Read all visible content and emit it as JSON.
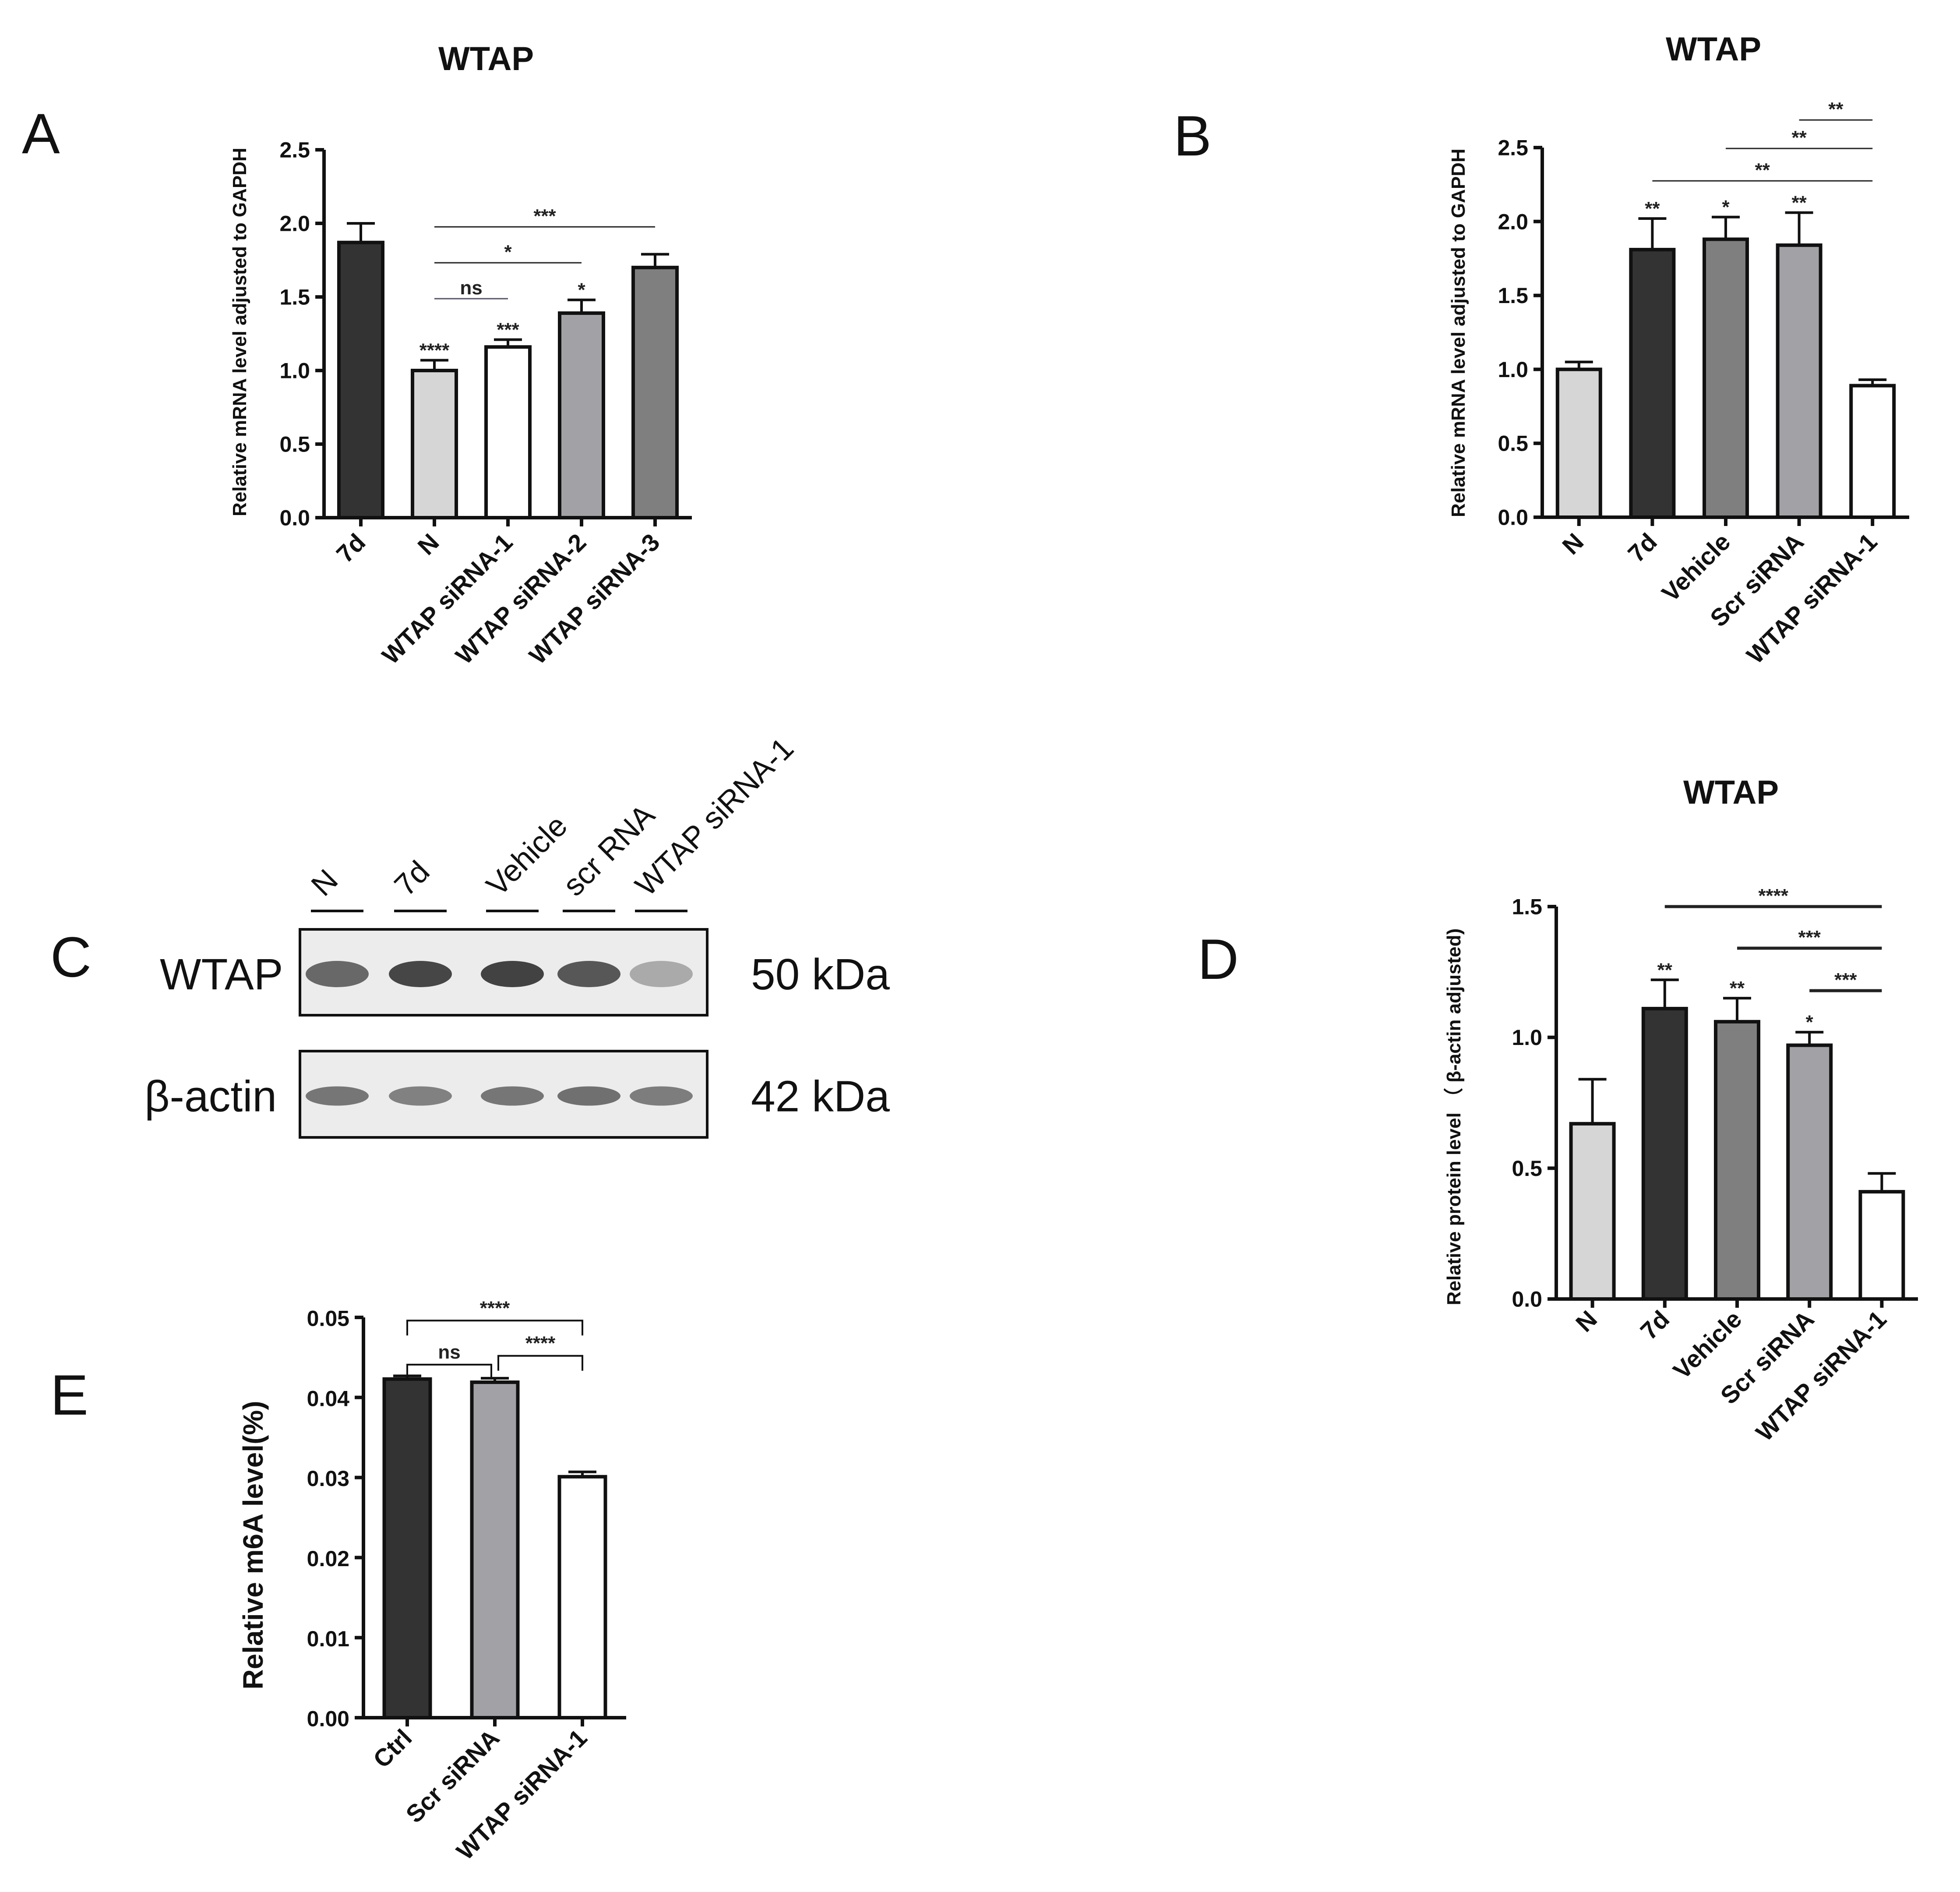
{
  "panels": {
    "a": "A",
    "b": "B",
    "c": "C",
    "d": "D",
    "e": "E"
  },
  "blot": {
    "lanes": [
      "N",
      "7d",
      "Vehicle",
      "scr RNA",
      "WTAP siRNA-1"
    ],
    "rows": [
      {
        "label": "WTAP",
        "size": "50 kDa",
        "intensities": [
          0.72,
          0.88,
          0.9,
          0.8,
          0.4
        ]
      },
      {
        "label": "β-actin",
        "size": "42 kDa",
        "intensities": [
          0.65,
          0.6,
          0.65,
          0.68,
          0.62
        ]
      }
    ]
  },
  "chart_data": [
    {
      "id": "A",
      "type": "bar",
      "title": "WTAP",
      "xlabel": "",
      "ylabel": "Relative mRNA level adjusted to GAPDH",
      "ylim": [
        0,
        2.5
      ],
      "yticks": [
        "0.0",
        "0.5",
        "1.0",
        "1.5",
        "2.0",
        "2.5"
      ],
      "categories": [
        "7d",
        "N",
        "WTAP siRNA-1",
        "WTAP siRNA-2",
        "WTAP siRNA-3"
      ],
      "values": [
        1.87,
        1.0,
        1.16,
        1.39,
        1.7
      ],
      "errors": [
        0.13,
        0.07,
        0.05,
        0.09,
        0.09
      ],
      "colors": [
        "#333333",
        "#d6d6d6",
        "#ffffff",
        "#a2a2a6",
        "#7f7f7f"
      ],
      "bar_labels": [
        "",
        "****",
        "***",
        "*",
        ""
      ],
      "comparisons": [
        {
          "from": 1,
          "to": 2,
          "label": "ns"
        },
        {
          "from": 1,
          "to": 3,
          "label": "*"
        },
        {
          "from": 1,
          "to": 4,
          "label": "***"
        }
      ],
      "grid": false,
      "legend": "none"
    },
    {
      "id": "B",
      "type": "bar",
      "title": "WTAP",
      "xlabel": "",
      "ylabel": "Relative mRNA level adjusted to GAPDH",
      "ylim": [
        0,
        2.5
      ],
      "yticks": [
        "0.0",
        "0.5",
        "1.0",
        "1.5",
        "2.0",
        "2.5"
      ],
      "categories": [
        "N",
        "7d",
        "Vehicle",
        "Scr siRNA",
        "WTAP siRNA-1"
      ],
      "values": [
        1.0,
        1.81,
        1.88,
        1.84,
        0.89
      ],
      "errors": [
        0.05,
        0.21,
        0.15,
        0.22,
        0.04
      ],
      "colors": [
        "#d6d6d6",
        "#333333",
        "#7f7f7f",
        "#a2a2a6",
        "#ffffff"
      ],
      "bar_labels": [
        "",
        "**",
        "*",
        "**",
        ""
      ],
      "comparisons": [
        {
          "from": 1,
          "to": 4,
          "label": "**"
        },
        {
          "from": 2,
          "to": 4,
          "label": "**"
        },
        {
          "from": 3,
          "to": 4,
          "label": "**"
        }
      ],
      "grid": false,
      "legend": "none"
    },
    {
      "id": "D",
      "type": "bar",
      "title": "WTAP",
      "xlabel": "",
      "ylabel": "Relative protein level （ β-actin adjusted)",
      "ylim": [
        0,
        1.5
      ],
      "yticks": [
        "0.0",
        "0.5",
        "1.0",
        "1.5"
      ],
      "categories": [
        "N",
        "7d",
        "Vehicle",
        "Scr siRNA",
        "WTAP siRNA-1"
      ],
      "values": [
        0.67,
        1.11,
        1.06,
        0.97,
        0.41
      ],
      "errors": [
        0.17,
        0.11,
        0.09,
        0.05,
        0.07
      ],
      "colors": [
        "#d6d6d6",
        "#333333",
        "#7f7f7f",
        "#a2a2a6",
        "#ffffff"
      ],
      "bar_labels": [
        "",
        "**",
        "**",
        "*",
        ""
      ],
      "comparisons": [
        {
          "from": 1,
          "to": 4,
          "label": "****"
        },
        {
          "from": 2,
          "to": 4,
          "label": "***"
        },
        {
          "from": 3,
          "to": 4,
          "label": "***"
        }
      ],
      "grid": false,
      "legend": "none"
    },
    {
      "id": "E",
      "type": "bar",
      "title": "",
      "xlabel": "",
      "ylabel": "Relative m6A level(%)",
      "ylim": [
        0,
        0.05
      ],
      "yticks": [
        "0.00",
        "0.01",
        "0.02",
        "0.03",
        "0.04",
        "0.05"
      ],
      "categories": [
        "Ctrl",
        "Scr siRNA",
        "WTAP siRNA-1"
      ],
      "values": [
        0.0423,
        0.0419,
        0.0301
      ],
      "errors": [
        0.0004,
        0.0005,
        0.0006
      ],
      "colors": [
        "#333333",
        "#a2a2a6",
        "#ffffff"
      ],
      "bar_labels": [
        "",
        "",
        ""
      ],
      "comparisons": [
        {
          "from": 0,
          "to": 1,
          "label": "ns"
        },
        {
          "from": 1,
          "to": 2,
          "label": "****"
        },
        {
          "from": 0,
          "to": 2,
          "label": "****"
        }
      ],
      "grid": false,
      "legend": "none"
    }
  ]
}
